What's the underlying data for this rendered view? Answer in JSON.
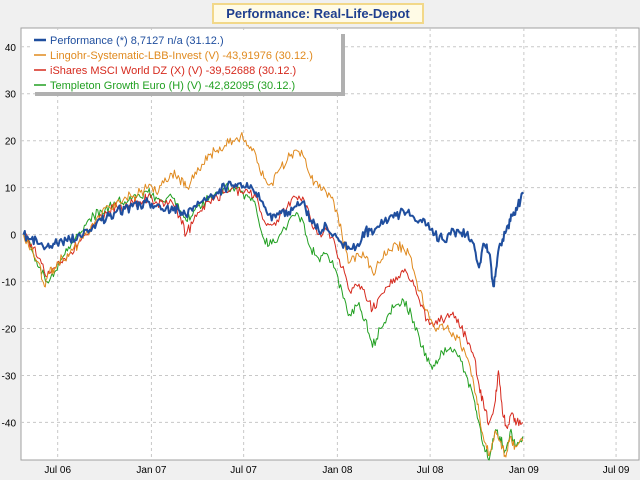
{
  "chart_data": {
    "type": "line",
    "title": "Performance: Real-Life-Depot",
    "xlabel": "",
    "ylabel": "",
    "xlim": [
      "2006-04-20",
      "2009-08-15"
    ],
    "ylim": [
      -48,
      44
    ],
    "y_ticks": [
      40,
      30,
      20,
      10,
      0,
      -10,
      -20,
      -30,
      -40
    ],
    "x_ticks": [
      {
        "date": "2006-07-01",
        "label": "Jul 06"
      },
      {
        "date": "2007-01-01",
        "label": "Jan 07"
      },
      {
        "date": "2007-07-01",
        "label": "Jul 07"
      },
      {
        "date": "2008-01-01",
        "label": "Jan 08"
      },
      {
        "date": "2008-07-01",
        "label": "Jul 08"
      },
      {
        "date": "2009-01-01",
        "label": "Jan 09"
      },
      {
        "date": "2009-07-01",
        "label": "Jul 09"
      }
    ],
    "grid": true,
    "legend_position": "top-left",
    "series": [
      {
        "name": "Performance (*) 8,7127 n/a (31.12.)",
        "color": "#1f4e9e",
        "points": [
          [
            "2006-04-25",
            0
          ],
          [
            "2006-05-10",
            -1
          ],
          [
            "2006-05-25",
            -2
          ],
          [
            "2006-06-10",
            -2.5
          ],
          [
            "2006-06-25",
            -2
          ],
          [
            "2006-07-10",
            -1.5
          ],
          [
            "2006-07-25",
            -1
          ],
          [
            "2006-08-10",
            0
          ],
          [
            "2006-08-25",
            1
          ],
          [
            "2006-09-10",
            2
          ],
          [
            "2006-09-25",
            3
          ],
          [
            "2006-10-10",
            4
          ],
          [
            "2006-10-25",
            5
          ],
          [
            "2006-11-10",
            5.5
          ],
          [
            "2006-11-25",
            6
          ],
          [
            "2006-12-10",
            6.5
          ],
          [
            "2006-12-25",
            7
          ],
          [
            "2007-01-10",
            6
          ],
          [
            "2007-01-25",
            5
          ],
          [
            "2007-02-10",
            6
          ],
          [
            "2007-02-25",
            5
          ],
          [
            "2007-03-10",
            4
          ],
          [
            "2007-03-25",
            6
          ],
          [
            "2007-04-10",
            7
          ],
          [
            "2007-04-25",
            8
          ],
          [
            "2007-05-10",
            9
          ],
          [
            "2007-05-25",
            10
          ],
          [
            "2007-06-10",
            10.5
          ],
          [
            "2007-06-25",
            11
          ],
          [
            "2007-07-10",
            10
          ],
          [
            "2007-07-25",
            9
          ],
          [
            "2007-08-10",
            6
          ],
          [
            "2007-08-25",
            3
          ],
          [
            "2007-09-10",
            5
          ],
          [
            "2007-09-25",
            4
          ],
          [
            "2007-10-10",
            6
          ],
          [
            "2007-10-25",
            7
          ],
          [
            "2007-11-10",
            3
          ],
          [
            "2007-11-25",
            1
          ],
          [
            "2007-12-10",
            2
          ],
          [
            "2007-12-25",
            0
          ],
          [
            "2008-01-10",
            -2
          ],
          [
            "2008-01-25",
            -3
          ],
          [
            "2008-02-10",
            -2
          ],
          [
            "2008-02-25",
            1
          ],
          [
            "2008-03-10",
            0
          ],
          [
            "2008-03-25",
            2
          ],
          [
            "2008-04-10",
            3
          ],
          [
            "2008-04-25",
            4
          ],
          [
            "2008-05-10",
            5
          ],
          [
            "2008-05-25",
            4
          ],
          [
            "2008-06-10",
            3
          ],
          [
            "2008-06-25",
            2
          ],
          [
            "2008-07-10",
            0
          ],
          [
            "2008-07-25",
            -1
          ],
          [
            "2008-08-10",
            0
          ],
          [
            "2008-08-25",
            1
          ],
          [
            "2008-09-10",
            0
          ],
          [
            "2008-09-25",
            -2
          ],
          [
            "2008-10-05",
            -7
          ],
          [
            "2008-10-15",
            -2
          ],
          [
            "2008-10-25",
            -4
          ],
          [
            "2008-11-02",
            -11
          ],
          [
            "2008-11-10",
            -5
          ],
          [
            "2008-11-20",
            -1
          ],
          [
            "2008-12-01",
            2
          ],
          [
            "2008-12-10",
            4
          ],
          [
            "2008-12-20",
            6
          ],
          [
            "2008-12-31",
            8.7
          ]
        ]
      },
      {
        "name": "Lingohr-Systematic-LBB-Invest (V) -43,91976 (30.12.)",
        "color": "#e08a1f",
        "points": [
          [
            "2006-04-25",
            0
          ],
          [
            "2006-05-10",
            -3
          ],
          [
            "2006-05-25",
            -6
          ],
          [
            "2006-06-05",
            -11
          ],
          [
            "2006-06-15",
            -8
          ],
          [
            "2006-06-25",
            -7
          ],
          [
            "2006-07-10",
            -5
          ],
          [
            "2006-07-25",
            -4
          ],
          [
            "2006-08-10",
            -2
          ],
          [
            "2006-08-25",
            0
          ],
          [
            "2006-09-10",
            2
          ],
          [
            "2006-09-25",
            4
          ],
          [
            "2006-10-10",
            6
          ],
          [
            "2006-10-25",
            7
          ],
          [
            "2006-11-10",
            8
          ],
          [
            "2006-11-25",
            8
          ],
          [
            "2006-12-10",
            9
          ],
          [
            "2006-12-25",
            10
          ],
          [
            "2007-01-10",
            9
          ],
          [
            "2007-01-25",
            11
          ],
          [
            "2007-02-10",
            13
          ],
          [
            "2007-02-25",
            12
          ],
          [
            "2007-03-10",
            10
          ],
          [
            "2007-03-25",
            12
          ],
          [
            "2007-04-10",
            15
          ],
          [
            "2007-04-25",
            17
          ],
          [
            "2007-05-10",
            18
          ],
          [
            "2007-05-25",
            19
          ],
          [
            "2007-06-10",
            20
          ],
          [
            "2007-06-25",
            21
          ],
          [
            "2007-07-10",
            19
          ],
          [
            "2007-07-25",
            17
          ],
          [
            "2007-08-10",
            12
          ],
          [
            "2007-08-25",
            11
          ],
          [
            "2007-09-10",
            14
          ],
          [
            "2007-09-25",
            16
          ],
          [
            "2007-10-10",
            18
          ],
          [
            "2007-10-25",
            17
          ],
          [
            "2007-11-10",
            12
          ],
          [
            "2007-11-25",
            10
          ],
          [
            "2007-12-10",
            9
          ],
          [
            "2007-12-25",
            7
          ],
          [
            "2008-01-10",
            0
          ],
          [
            "2008-01-25",
            -6
          ],
          [
            "2008-02-10",
            -4
          ],
          [
            "2008-02-25",
            -5
          ],
          [
            "2008-03-10",
            -8
          ],
          [
            "2008-03-25",
            -6
          ],
          [
            "2008-04-10",
            -3
          ],
          [
            "2008-04-25",
            -2
          ],
          [
            "2008-05-10",
            -3
          ],
          [
            "2008-05-25",
            -5
          ],
          [
            "2008-06-10",
            -12
          ],
          [
            "2008-06-25",
            -16
          ],
          [
            "2008-07-10",
            -20
          ],
          [
            "2008-07-25",
            -19
          ],
          [
            "2008-08-10",
            -21
          ],
          [
            "2008-08-25",
            -22
          ],
          [
            "2008-09-10",
            -26
          ],
          [
            "2008-09-25",
            -32
          ],
          [
            "2008-10-05",
            -38
          ],
          [
            "2008-10-15",
            -44
          ],
          [
            "2008-10-25",
            -47
          ],
          [
            "2008-11-05",
            -42
          ],
          [
            "2008-11-15",
            -44
          ],
          [
            "2008-11-25",
            -47
          ],
          [
            "2008-12-05",
            -43
          ],
          [
            "2008-12-15",
            -45
          ],
          [
            "2008-12-30",
            -44
          ]
        ]
      },
      {
        "name": "iShares MSCI World DZ (X) (V) -39,52688 (30.12.)",
        "color": "#d62a1e",
        "points": [
          [
            "2006-04-25",
            0
          ],
          [
            "2006-05-10",
            -2
          ],
          [
            "2006-05-25",
            -5
          ],
          [
            "2006-06-10",
            -9
          ],
          [
            "2006-06-25",
            -7
          ],
          [
            "2006-07-10",
            -6
          ],
          [
            "2006-07-25",
            -4
          ],
          [
            "2006-08-10",
            -2
          ],
          [
            "2006-08-25",
            0
          ],
          [
            "2006-09-10",
            2
          ],
          [
            "2006-09-25",
            4
          ],
          [
            "2006-10-10",
            5
          ],
          [
            "2006-10-25",
            6
          ],
          [
            "2006-11-10",
            6
          ],
          [
            "2006-11-25",
            7
          ],
          [
            "2006-12-10",
            7
          ],
          [
            "2006-12-25",
            8
          ],
          [
            "2007-01-10",
            7
          ],
          [
            "2007-01-25",
            6
          ],
          [
            "2007-02-10",
            7
          ],
          [
            "2007-02-25",
            4
          ],
          [
            "2007-03-10",
            0
          ],
          [
            "2007-03-25",
            3
          ],
          [
            "2007-04-10",
            5
          ],
          [
            "2007-04-25",
            7
          ],
          [
            "2007-05-10",
            8
          ],
          [
            "2007-05-25",
            9
          ],
          [
            "2007-06-10",
            10
          ],
          [
            "2007-06-25",
            9
          ],
          [
            "2007-07-10",
            9
          ],
          [
            "2007-07-25",
            8
          ],
          [
            "2007-08-10",
            3
          ],
          [
            "2007-08-25",
            2
          ],
          [
            "2007-09-10",
            4
          ],
          [
            "2007-09-25",
            6
          ],
          [
            "2007-10-10",
            8
          ],
          [
            "2007-10-25",
            8
          ],
          [
            "2007-11-10",
            3
          ],
          [
            "2007-11-25",
            0
          ],
          [
            "2007-12-10",
            1
          ],
          [
            "2007-12-25",
            -1
          ],
          [
            "2008-01-10",
            -7
          ],
          [
            "2008-01-25",
            -12
          ],
          [
            "2008-02-10",
            -11
          ],
          [
            "2008-02-25",
            -13
          ],
          [
            "2008-03-10",
            -16
          ],
          [
            "2008-03-25",
            -13
          ],
          [
            "2008-04-10",
            -11
          ],
          [
            "2008-04-25",
            -9
          ],
          [
            "2008-05-10",
            -8
          ],
          [
            "2008-05-25",
            -10
          ],
          [
            "2008-06-10",
            -14
          ],
          [
            "2008-06-25",
            -18
          ],
          [
            "2008-07-10",
            -19
          ],
          [
            "2008-07-25",
            -18
          ],
          [
            "2008-08-10",
            -17
          ],
          [
            "2008-08-25",
            -18
          ],
          [
            "2008-09-10",
            -22
          ],
          [
            "2008-09-25",
            -26
          ],
          [
            "2008-10-05",
            -32
          ],
          [
            "2008-10-15",
            -37
          ],
          [
            "2008-10-25",
            -40
          ],
          [
            "2008-11-05",
            -36
          ],
          [
            "2008-11-12",
            -29
          ],
          [
            "2008-11-20",
            -38
          ],
          [
            "2008-11-28",
            -41
          ],
          [
            "2008-12-08",
            -38
          ],
          [
            "2008-12-18",
            -40
          ],
          [
            "2008-12-30",
            -40
          ]
        ]
      },
      {
        "name": "Templeton Growth Euro (H) (V) -42,82095 (30.12.)",
        "color": "#22a022",
        "points": [
          [
            "2006-04-25",
            0
          ],
          [
            "2006-05-10",
            -3
          ],
          [
            "2006-05-25",
            -7
          ],
          [
            "2006-06-10",
            -10
          ],
          [
            "2006-06-25",
            -8
          ],
          [
            "2006-07-10",
            -5
          ],
          [
            "2006-07-25",
            -3
          ],
          [
            "2006-08-10",
            0
          ],
          [
            "2006-08-25",
            2
          ],
          [
            "2006-09-10",
            4
          ],
          [
            "2006-09-25",
            5
          ],
          [
            "2006-10-10",
            6
          ],
          [
            "2006-10-25",
            7
          ],
          [
            "2006-11-10",
            7
          ],
          [
            "2006-11-25",
            8
          ],
          [
            "2006-12-10",
            8
          ],
          [
            "2006-12-25",
            9
          ],
          [
            "2007-01-10",
            8
          ],
          [
            "2007-01-25",
            7
          ],
          [
            "2007-02-10",
            8
          ],
          [
            "2007-02-25",
            5
          ],
          [
            "2007-03-10",
            3
          ],
          [
            "2007-03-25",
            5
          ],
          [
            "2007-04-10",
            6
          ],
          [
            "2007-04-25",
            8
          ],
          [
            "2007-05-10",
            9
          ],
          [
            "2007-05-25",
            10
          ],
          [
            "2007-06-10",
            10
          ],
          [
            "2007-06-25",
            9
          ],
          [
            "2007-07-10",
            8
          ],
          [
            "2007-07-25",
            6
          ],
          [
            "2007-08-10",
            -1
          ],
          [
            "2007-08-25",
            -2
          ],
          [
            "2007-09-10",
            0
          ],
          [
            "2007-09-25",
            2
          ],
          [
            "2007-10-10",
            4
          ],
          [
            "2007-10-25",
            3
          ],
          [
            "2007-11-10",
            -3
          ],
          [
            "2007-11-25",
            -5
          ],
          [
            "2007-12-10",
            -4
          ],
          [
            "2007-12-25",
            -7
          ],
          [
            "2008-01-10",
            -12
          ],
          [
            "2008-01-25",
            -17
          ],
          [
            "2008-02-10",
            -15
          ],
          [
            "2008-02-25",
            -18
          ],
          [
            "2008-03-10",
            -24
          ],
          [
            "2008-03-25",
            -20
          ],
          [
            "2008-04-10",
            -17
          ],
          [
            "2008-04-25",
            -15
          ],
          [
            "2008-05-10",
            -14
          ],
          [
            "2008-05-25",
            -17
          ],
          [
            "2008-06-10",
            -22
          ],
          [
            "2008-06-25",
            -27
          ],
          [
            "2008-07-10",
            -28
          ],
          [
            "2008-07-25",
            -25
          ],
          [
            "2008-08-10",
            -24
          ],
          [
            "2008-08-25",
            -26
          ],
          [
            "2008-09-10",
            -30
          ],
          [
            "2008-09-25",
            -35
          ],
          [
            "2008-10-05",
            -40
          ],
          [
            "2008-10-15",
            -45
          ],
          [
            "2008-10-25",
            -48
          ],
          [
            "2008-11-05",
            -42
          ],
          [
            "2008-11-15",
            -43
          ],
          [
            "2008-11-25",
            -46
          ],
          [
            "2008-12-05",
            -42
          ],
          [
            "2008-12-15",
            -45
          ],
          [
            "2008-12-30",
            -43
          ]
        ]
      }
    ]
  }
}
